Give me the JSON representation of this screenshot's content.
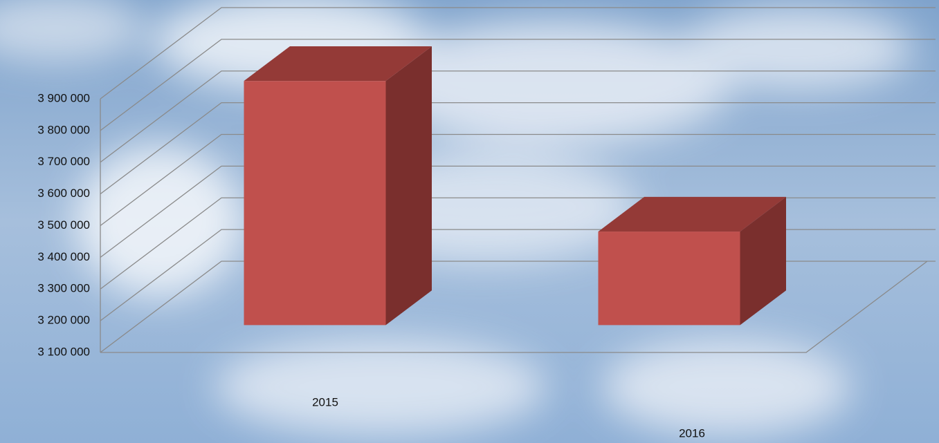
{
  "chart_data": {
    "type": "bar3d",
    "categories": [
      "2015",
      "2016"
    ],
    "values": [
      3870000,
      3395000
    ],
    "colors": {
      "front": "#c0504d",
      "top": "#943a37",
      "side": "#7a2f2d"
    },
    "ylim": [
      3100000,
      3900000
    ],
    "yticks": [
      {
        "value": 3100000,
        "label": "3 100 000"
      },
      {
        "value": 3200000,
        "label": "3 200 000"
      },
      {
        "value": 3300000,
        "label": "3 300 000"
      },
      {
        "value": 3400000,
        "label": "3 400 000"
      },
      {
        "value": 3500000,
        "label": "3 500 000"
      },
      {
        "value": 3600000,
        "label": "3 600 000"
      },
      {
        "value": 3700000,
        "label": "3 700 000"
      },
      {
        "value": 3800000,
        "label": "3 800 000"
      },
      {
        "value": 3900000,
        "label": "3 900 000"
      }
    ],
    "grid": true
  }
}
